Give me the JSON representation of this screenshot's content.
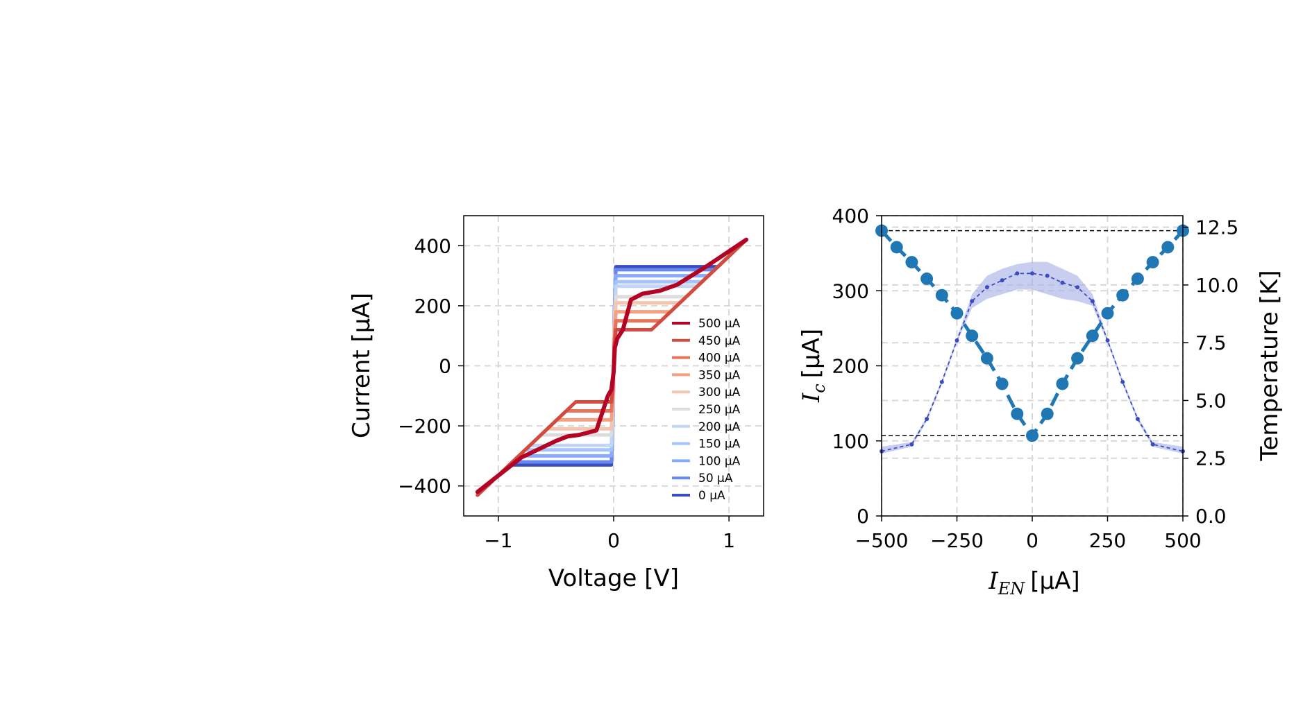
{
  "chart_data": [
    {
      "type": "line",
      "xlabel": "Voltage [V]",
      "ylabel": "Current [µA]",
      "xlim": [
        -1.3,
        1.3
      ],
      "ylim": [
        -500,
        500
      ],
      "xticks": [
        -1,
        0,
        1
      ],
      "xtick_labels": [
        "−1",
        "0",
        "1"
      ],
      "yticks": [
        -400,
        -200,
        0,
        200,
        400
      ],
      "ytick_labels": [
        "−400",
        "−200",
        "0",
        "200",
        "400"
      ],
      "grid": true,
      "legend_position": "lower right",
      "legend": [
        "500 µA",
        "450 µA",
        "400 µA",
        "350 µA",
        "300 µA",
        "250 µA",
        "200 µA",
        "150 µA",
        "100 µA",
        "50 µA",
        "0 µA"
      ],
      "series": [
        {
          "name": "500 µA",
          "color": "#b40426",
          "switch_current": 100
        },
        {
          "name": "450 µA",
          "color": "#d24b40",
          "switch_current": 120
        },
        {
          "name": "400 µA",
          "color": "#e7745b",
          "switch_current": 150
        },
        {
          "name": "350 µA",
          "color": "#f5a081",
          "switch_current": 180
        },
        {
          "name": "300 µA",
          "color": "#f4c6af",
          "switch_current": 210
        },
        {
          "name": "250 µA",
          "color": "#dddcdc",
          "switch_current": 230
        },
        {
          "name": "200 µA",
          "color": "#c3d5f4",
          "switch_current": 265
        },
        {
          "name": "150 µA",
          "color": "#a5c3fe",
          "switch_current": 280
        },
        {
          "name": "100 µA",
          "color": "#88abfd",
          "switch_current": 300
        },
        {
          "name": "50 µA",
          "color": "#6788ee",
          "switch_current": 320
        },
        {
          "name": "0 µA",
          "color": "#3b4cc0",
          "switch_current": 330
        }
      ]
    },
    {
      "type": "line",
      "xlabel_symbol": "I",
      "xlabel_subscript": "EN",
      "xlabel_unit": "[µA]",
      "ylabel_symbol": "I",
      "ylabel_subscript": "c",
      "ylabel_unit": "[µA]",
      "y2label": "Temperature [K]",
      "xlim": [
        -500,
        500
      ],
      "ylim": [
        0,
        400
      ],
      "y2lim": [
        0,
        13
      ],
      "xticks": [
        -500,
        -250,
        0,
        250,
        500
      ],
      "xtick_labels": [
        "−500",
        "−250",
        "0",
        "250",
        "500"
      ],
      "yticks": [
        0,
        100,
        200,
        300,
        400
      ],
      "ytick_labels": [
        "0",
        "100",
        "200",
        "300",
        "400"
      ],
      "y2ticks": [
        0,
        2.5,
        5,
        7.5,
        10,
        12.5
      ],
      "y2tick_labels": [
        "0.0",
        "2.5",
        "5.0",
        "7.5",
        "10.0",
        "12.5"
      ],
      "grid": true,
      "hlines": [
        380,
        107
      ],
      "ic_series": {
        "x": [
          -500,
          -450,
          -400,
          -350,
          -300,
          -250,
          -200,
          -150,
          -100,
          -50,
          0,
          50,
          100,
          150,
          200,
          250,
          300,
          350,
          400,
          450,
          500
        ],
        "y": [
          380,
          358,
          338,
          316,
          294,
          270,
          240,
          210,
          176,
          136,
          107,
          136,
          176,
          210,
          240,
          270,
          294,
          316,
          338,
          358,
          380
        ],
        "color": "#1f77b4"
      },
      "temperature_series": {
        "x": [
          -500,
          -400,
          -350,
          -300,
          -250,
          -200,
          -150,
          -100,
          -50,
          0,
          50,
          100,
          150,
          200,
          250,
          300,
          350,
          400,
          500
        ],
        "y": [
          2.8,
          3.1,
          4.2,
          5.8,
          7.6,
          9.3,
          9.9,
          10.2,
          10.5,
          10.5,
          10.4,
          10.1,
          9.9,
          9.3,
          7.6,
          5.8,
          4.2,
          3.1,
          2.8
        ],
        "band_low": [
          2.7,
          3.0,
          4.1,
          5.7,
          7.5,
          9.0,
          9.4,
          9.6,
          9.8,
          9.8,
          9.6,
          9.4,
          9.3,
          9.1,
          7.5,
          5.7,
          4.1,
          3.0,
          2.7
        ],
        "band_high": [
          3.0,
          3.2,
          4.3,
          5.9,
          7.7,
          9.6,
          10.4,
          10.7,
          10.9,
          11.0,
          11.0,
          10.7,
          10.4,
          9.6,
          7.7,
          5.9,
          4.3,
          3.2,
          3.0
        ],
        "color": "#3b4cc0",
        "band_color": "#aab3e6"
      }
    }
  ]
}
